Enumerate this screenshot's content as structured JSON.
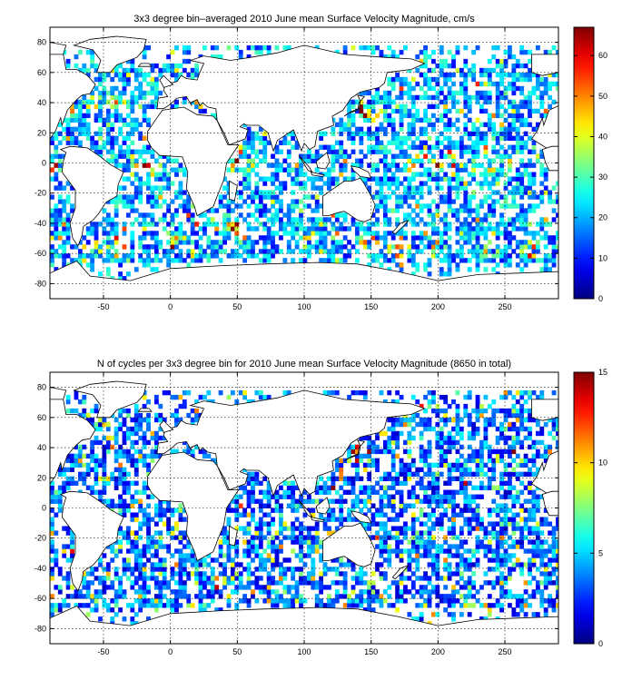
{
  "chart_data": [
    {
      "type": "heatmap",
      "title": "3x3 degree bin–averaged 2010 June mean Surface Velocity Magnitude, cm/s",
      "xlim": [
        -90,
        290
      ],
      "ylim": [
        -90,
        90
      ],
      "x_ticks": [
        -50,
        0,
        50,
        100,
        150,
        200,
        250
      ],
      "y_ticks": [
        80,
        60,
        40,
        20,
        0,
        -20,
        -40,
        -60,
        -80
      ],
      "bin_size_deg": 3,
      "grid": true,
      "colorbar": {
        "min": 0,
        "max": 67,
        "ticks": [
          0,
          10,
          20,
          30,
          40,
          50,
          60
        ],
        "colormap": "jet",
        "placement": "right"
      },
      "seed": 7
    },
    {
      "type": "heatmap",
      "title": "N of cycles per 3x3 degree bin for 2010 June mean Surface Velocity Magnitude (8650 in total)",
      "xlim": [
        -90,
        290
      ],
      "ylim": [
        -90,
        90
      ],
      "x_ticks": [
        -50,
        0,
        50,
        100,
        150,
        200,
        250
      ],
      "y_ticks": [
        80,
        60,
        40,
        20,
        0,
        -20,
        -40,
        -60,
        -80
      ],
      "bin_size_deg": 3,
      "grid": true,
      "colorbar": {
        "min": 0,
        "max": 15,
        "ticks": [
          0,
          5,
          10,
          15
        ],
        "colormap": "jet",
        "placement": "right"
      },
      "seed": 23
    }
  ]
}
